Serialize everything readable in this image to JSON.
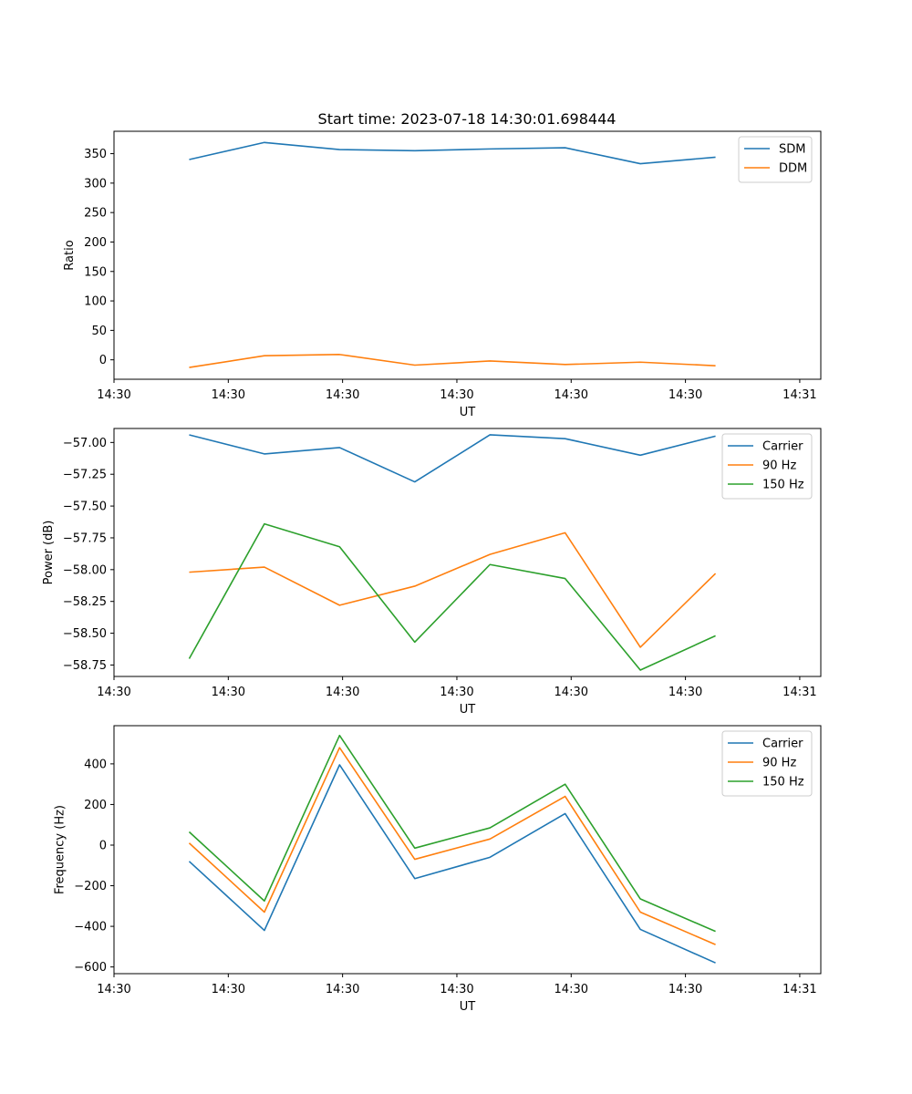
{
  "figure": {
    "title": "Start time: 2023-07-18 14:30:01.698444"
  },
  "chart_data": [
    {
      "type": "line",
      "title": "Start time: 2023-07-18 14:30:01.698444",
      "xlabel": "UT",
      "ylabel": "Ratio",
      "x": [
        1.0,
        2.0,
        3.0,
        4.0,
        5.0,
        6.0,
        7.0,
        8.0
      ],
      "xlim": [
        0.0,
        9.4
      ],
      "xticks": [
        0.0,
        1.52,
        3.04,
        4.56,
        6.08,
        7.6,
        9.12
      ],
      "xticklabels": [
        "14:30",
        "14:30",
        "14:30",
        "14:30",
        "14:30",
        "14:30",
        "14:31"
      ],
      "ylim": [
        -33,
        388
      ],
      "yticks": [
        0,
        50,
        100,
        150,
        200,
        250,
        300,
        350
      ],
      "yticklabels": [
        "0",
        "50",
        "100",
        "150",
        "200",
        "250",
        "300",
        "350"
      ],
      "legend_position": "top-right",
      "series": [
        {
          "name": "SDM",
          "color": "#1f77b4",
          "values": [
            340,
            369,
            357,
            355,
            358,
            360,
            333,
            344
          ]
        },
        {
          "name": "DDM",
          "color": "#ff7f0e",
          "values": [
            -13,
            7,
            9,
            -9,
            -2,
            -8,
            -4,
            -10
          ]
        }
      ]
    },
    {
      "type": "line",
      "title": "",
      "xlabel": "UT",
      "ylabel": "Power (dB)",
      "x": [
        1.0,
        2.0,
        3.0,
        4.0,
        5.0,
        6.0,
        7.0,
        8.0
      ],
      "xlim": [
        0.0,
        9.4
      ],
      "xticks": [
        0.0,
        1.52,
        3.04,
        4.56,
        6.08,
        7.6,
        9.12
      ],
      "xticklabels": [
        "14:30",
        "14:30",
        "14:30",
        "14:30",
        "14:30",
        "14:30",
        "14:31"
      ],
      "ylim": [
        -58.84,
        -56.89
      ],
      "yticks": [
        -58.75,
        -58.5,
        -58.25,
        -58.0,
        -57.75,
        -57.5,
        -57.25,
        -57.0
      ],
      "yticklabels": [
        "−58.75",
        "−58.50",
        "−58.25",
        "−58.00",
        "−57.75",
        "−57.50",
        "−57.25",
        "−57.00"
      ],
      "legend_position": "top-right",
      "series": [
        {
          "name": "Carrier",
          "color": "#1f77b4",
          "values": [
            -56.94,
            -57.09,
            -57.04,
            -57.31,
            -56.94,
            -56.97,
            -57.1,
            -56.95
          ]
        },
        {
          "name": "90 Hz",
          "color": "#ff7f0e",
          "values": [
            -58.02,
            -57.98,
            -58.28,
            -58.13,
            -57.88,
            -57.71,
            -58.61,
            -58.03
          ]
        },
        {
          "name": "150 Hz",
          "color": "#2ca02c",
          "values": [
            -58.7,
            -57.64,
            -57.82,
            -58.57,
            -57.96,
            -58.07,
            -58.79,
            -58.52
          ]
        }
      ]
    },
    {
      "type": "line",
      "title": "",
      "xlabel": "UT",
      "ylabel": "Frequency (Hz)",
      "x": [
        1.0,
        2.0,
        3.0,
        4.0,
        5.0,
        6.0,
        7.0,
        8.0
      ],
      "xlim": [
        0.0,
        9.4
      ],
      "xticks": [
        0.0,
        1.52,
        3.04,
        4.56,
        6.08,
        7.6,
        9.12
      ],
      "xticklabels": [
        "14:30",
        "14:30",
        "14:30",
        "14:30",
        "14:30",
        "14:30",
        "14:31"
      ],
      "ylim": [
        -633,
        588
      ],
      "yticks": [
        -600,
        -400,
        -200,
        0,
        200,
        400
      ],
      "yticklabels": [
        "−600",
        "−400",
        "−200",
        "0",
        "200",
        "400"
      ],
      "legend_position": "top-right",
      "series": [
        {
          "name": "Carrier",
          "color": "#1f77b4",
          "values": [
            -80,
            -420,
            395,
            -165,
            -60,
            155,
            -415,
            -580
          ]
        },
        {
          "name": "90 Hz",
          "color": "#ff7f0e",
          "values": [
            10,
            -330,
            480,
            -70,
            30,
            240,
            -330,
            -490
          ]
        },
        {
          "name": "150 Hz",
          "color": "#2ca02c",
          "values": [
            65,
            -275,
            540,
            -15,
            85,
            300,
            -265,
            -425
          ]
        }
      ]
    }
  ]
}
